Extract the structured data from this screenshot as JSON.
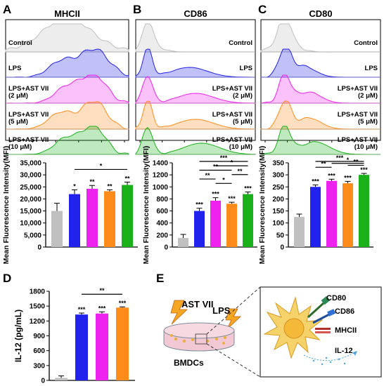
{
  "panels": {
    "A": "A",
    "B": "B",
    "C": "C",
    "D": "D",
    "E": "E"
  },
  "histograms": [
    {
      "title": "MHCII",
      "row_labels": [
        [
          "Control"
        ],
        [
          "LPS"
        ],
        [
          "LPS+AST VII",
          "(2 μM)"
        ],
        [
          "LPS+AST VII",
          "(5 μM)"
        ],
        [
          "LPS+AST VII",
          "(10 μM)"
        ]
      ]
    },
    {
      "title": "CD86",
      "row_labels": [
        [
          "Control"
        ],
        [
          "LPS"
        ],
        [
          "LPS+AST VII",
          "(2 μM)"
        ],
        [
          "LPS+AST VII",
          "(5 μM)"
        ],
        [
          "LPS+AST VII",
          "(10 μM)"
        ]
      ]
    },
    {
      "title": "CD80",
      "row_labels": [
        [
          "Control"
        ],
        [
          "LPS"
        ],
        [
          "LPS+AST VII",
          "(2 μM)"
        ],
        [
          "LPS+AST VII",
          "(5 μM)"
        ],
        [
          "LPS+AST VII",
          "(10 μM)"
        ]
      ]
    }
  ],
  "series_colors": [
    "#c0c0c0",
    "#2222ee",
    "#ee22ee",
    "#ff8c1a",
    "#1ab01a"
  ],
  "chart_data": [
    {
      "type": "bar",
      "panel": "A",
      "ylabel": "Mean Fluorescence Intensity(MFI)",
      "ylim": [
        0,
        35000
      ],
      "yticks": [
        "0",
        "5,000",
        "10,000",
        "15,000",
        "20,000",
        "25,000",
        "30,000",
        "35,000"
      ],
      "values": [
        15000,
        22000,
        24200,
        23200,
        25800
      ],
      "errors": [
        3200,
        1800,
        1400,
        600,
        1200
      ],
      "marks": [
        "",
        "*",
        "**",
        "**",
        "**"
      ],
      "brackets": [
        {
          "from": 1,
          "to": 4,
          "label": "*"
        }
      ]
    },
    {
      "type": "bar",
      "panel": "B",
      "ylabel": "Mean Fluorescence Intensity(MFI)",
      "ylim": [
        0,
        1400
      ],
      "yticks": [
        "0",
        "200",
        "400",
        "600",
        "800",
        "1000",
        "1200",
        "1400"
      ],
      "values": [
        150,
        600,
        770,
        720,
        880
      ],
      "errors": [
        60,
        45,
        50,
        25,
        35
      ],
      "marks": [
        "",
        "***",
        "***",
        "***",
        "***"
      ],
      "brackets": [
        {
          "from": 1,
          "to": 4,
          "label": "***"
        },
        {
          "from": 2,
          "to": 4,
          "label": "*"
        },
        {
          "from": 1,
          "to": 3,
          "label": "**"
        },
        {
          "from": 3,
          "to": 4,
          "label": "**"
        },
        {
          "from": 1,
          "to": 2,
          "label": "**"
        },
        {
          "from": 2,
          "to": 3,
          "label": "*"
        }
      ]
    },
    {
      "type": "bar",
      "panel": "C",
      "ylabel": "Mean Fluorescence Intensity(MFI)",
      "ylim": [
        0,
        350
      ],
      "yticks": [
        "0",
        "50",
        "100",
        "150",
        "200",
        "250",
        "300",
        "350"
      ],
      "values": [
        125,
        250,
        275,
        265,
        300
      ],
      "errors": [
        12,
        8,
        7,
        8,
        6
      ],
      "marks": [
        "",
        "***",
        "***",
        "***",
        "***"
      ],
      "brackets": [
        {
          "from": 1,
          "to": 4,
          "label": "***"
        },
        {
          "from": 2,
          "to": 4,
          "label": "*"
        },
        {
          "from": 3,
          "to": 4,
          "label": "**"
        },
        {
          "from": 1,
          "to": 2,
          "label": "**"
        }
      ]
    },
    {
      "type": "bar",
      "panel": "D",
      "ylabel": "IL-12 (pg/mL)",
      "ylim": [
        0,
        1800
      ],
      "yticks": [
        "0",
        "300",
        "600",
        "900",
        "1200",
        "1500",
        "1800"
      ],
      "values": [
        50,
        1330,
        1350,
        1470
      ],
      "errors": [
        40,
        30,
        35,
        15
      ],
      "marks": [
        "",
        "***",
        "***",
        "***"
      ],
      "brackets": [
        {
          "from": 1,
          "to": 3,
          "label": "**"
        }
      ]
    }
  ],
  "schematic": {
    "drug_label": "AST VII",
    "lps_label": "LPS",
    "dish_label": "BMDCs",
    "markers": [
      "CD80",
      "CD86",
      "MHCII"
    ],
    "cytokine": "IL-12"
  }
}
